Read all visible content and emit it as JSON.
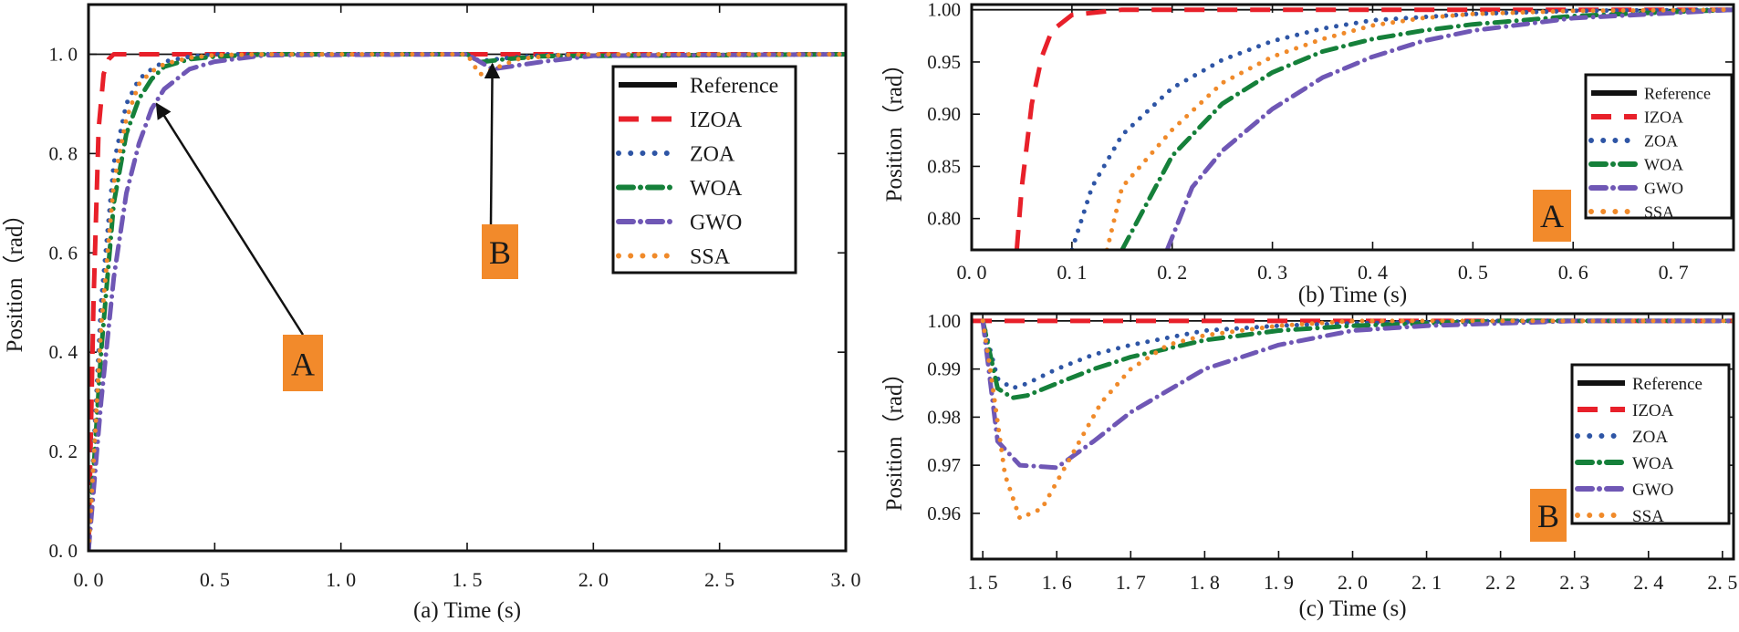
{
  "series_styles": [
    {
      "name": "Reference",
      "color": "#111111",
      "style": "solid"
    },
    {
      "name": "IZOA",
      "color": "#e8202a",
      "style": "dash"
    },
    {
      "name": "ZOA",
      "color": "#2e55a5",
      "style": "dot"
    },
    {
      "name": "WOA",
      "color": "#15803a",
      "style": "dashdot"
    },
    {
      "name": "GWO",
      "color": "#6f57b5",
      "style": "dashdot"
    },
    {
      "name": "SSA",
      "color": "#f08a2a",
      "style": "dot"
    }
  ],
  "chart_data": [
    {
      "type": "line",
      "id": "a",
      "title": "",
      "xlabel": "(a) Time (s)",
      "ylabel": "Position（rad）",
      "xlim": [
        0,
        3
      ],
      "ylim": [
        0,
        1.1
      ],
      "xticks": [
        0,
        0.5,
        1.0,
        1.5,
        2.0,
        2.5,
        3.0
      ],
      "xtick_labels": [
        "0. 0",
        "0. 5",
        "1. 0",
        "1. 5",
        "2. 0",
        "2. 5",
        "3. 0"
      ],
      "yticks": [
        0,
        0.2,
        0.4,
        0.6,
        0.8,
        1.0
      ],
      "ytick_labels": [
        "0. 0",
        "0. 2",
        "0. 4",
        "0. 6",
        "0. 8",
        "1. 0"
      ],
      "legend": [
        "Reference",
        "IZOA",
        "ZOA",
        "WOA",
        "GWO",
        "SSA"
      ],
      "legend_position": "top-right",
      "series": [
        {
          "name": "Reference",
          "x": [
            0,
            3
          ],
          "y": [
            1,
            1
          ]
        },
        {
          "name": "IZOA",
          "x": [
            0,
            0.02,
            0.04,
            0.06,
            0.08,
            0.1,
            0.15,
            0.3,
            1.5,
            1.6,
            3.0
          ],
          "y": [
            0,
            0.5,
            0.85,
            0.96,
            0.99,
            1.0,
            1.0,
            1.0,
            1.0,
            1.0,
            1.0
          ]
        },
        {
          "name": "ZOA",
          "x": [
            0,
            0.05,
            0.1,
            0.15,
            0.2,
            0.25,
            0.3,
            0.4,
            0.5,
            0.7,
            1.5,
            1.55,
            1.65,
            1.8,
            3.0
          ],
          "y": [
            0,
            0.5,
            0.78,
            0.9,
            0.95,
            0.97,
            0.985,
            0.995,
            1.0,
            1.0,
            1.0,
            0.986,
            0.992,
            0.998,
            1.0
          ]
        },
        {
          "name": "WOA",
          "x": [
            0,
            0.05,
            0.1,
            0.15,
            0.2,
            0.25,
            0.3,
            0.4,
            0.5,
            0.7,
            1.5,
            1.55,
            1.65,
            1.8,
            3.0
          ],
          "y": [
            0,
            0.4,
            0.7,
            0.84,
            0.91,
            0.95,
            0.975,
            0.99,
            0.995,
            1.0,
            1.0,
            0.984,
            0.99,
            0.996,
            1.0
          ]
        },
        {
          "name": "GWO",
          "x": [
            0,
            0.05,
            0.1,
            0.15,
            0.2,
            0.25,
            0.3,
            0.4,
            0.5,
            0.7,
            1.5,
            1.6,
            1.8,
            2.0,
            3.0
          ],
          "y": [
            0,
            0.3,
            0.55,
            0.72,
            0.82,
            0.89,
            0.93,
            0.97,
            0.985,
            0.998,
            1.0,
            0.97,
            0.985,
            0.997,
            1.0
          ]
        },
        {
          "name": "SSA",
          "x": [
            0,
            0.05,
            0.1,
            0.15,
            0.2,
            0.25,
            0.3,
            0.4,
            0.5,
            0.7,
            1.5,
            1.55,
            1.7,
            1.85,
            2.0,
            3.0
          ],
          "y": [
            0,
            0.45,
            0.74,
            0.87,
            0.94,
            0.965,
            0.98,
            0.993,
            0.998,
            1.0,
            1.0,
            0.959,
            0.99,
            0.998,
            1.0,
            1.0
          ]
        }
      ],
      "annotations": [
        {
          "label": "A",
          "target_x": 0.27,
          "target_y": 0.9
        },
        {
          "label": "B",
          "target_x": 1.6,
          "target_y": 0.98
        }
      ]
    },
    {
      "type": "line",
      "id": "b",
      "title": "",
      "xlabel": "(b) Time (s)",
      "ylabel": "Position（rad）",
      "xlim": [
        0,
        0.76
      ],
      "ylim": [
        0.77,
        1.005
      ],
      "xticks": [
        0,
        0.1,
        0.2,
        0.3,
        0.4,
        0.5,
        0.6,
        0.7
      ],
      "xtick_labels": [
        "0. 0",
        "0. 1",
        "0. 2",
        "0. 3",
        "0. 4",
        "0. 5",
        "0. 6",
        "0. 7"
      ],
      "yticks": [
        0.8,
        0.85,
        0.9,
        0.95,
        1.0
      ],
      "ytick_labels": [
        "0.80",
        "0.85",
        "0.90",
        "0.95",
        "1.00"
      ],
      "legend": [
        "Reference",
        "IZOA",
        "ZOA",
        "WOA",
        "GWO",
        "SSA"
      ],
      "legend_position": "right",
      "series": [
        {
          "name": "Reference",
          "x": [
            0,
            0.76
          ],
          "y": [
            1,
            1
          ]
        },
        {
          "name": "IZOA",
          "x": [
            0.045,
            0.05,
            0.06,
            0.07,
            0.08,
            0.1,
            0.15,
            0.25,
            0.76
          ],
          "y": [
            0.77,
            0.83,
            0.91,
            0.955,
            0.98,
            0.995,
            1.0,
            1.0,
            1.0
          ]
        },
        {
          "name": "ZOA",
          "x": [
            0.1,
            0.12,
            0.15,
            0.2,
            0.25,
            0.3,
            0.35,
            0.4,
            0.5,
            0.6,
            0.76
          ],
          "y": [
            0.77,
            0.83,
            0.88,
            0.925,
            0.952,
            0.97,
            0.982,
            0.99,
            0.996,
            0.999,
            1.0
          ]
        },
        {
          "name": "WOA",
          "x": [
            0.15,
            0.2,
            0.25,
            0.3,
            0.35,
            0.4,
            0.45,
            0.5,
            0.6,
            0.7,
            0.76
          ],
          "y": [
            0.77,
            0.86,
            0.91,
            0.94,
            0.96,
            0.972,
            0.98,
            0.986,
            0.994,
            0.998,
            1.0
          ]
        },
        {
          "name": "GWO",
          "x": [
            0.195,
            0.22,
            0.25,
            0.3,
            0.35,
            0.4,
            0.45,
            0.5,
            0.6,
            0.7,
            0.76
          ],
          "y": [
            0.77,
            0.83,
            0.865,
            0.905,
            0.935,
            0.955,
            0.97,
            0.98,
            0.992,
            0.997,
            1.0
          ]
        },
        {
          "name": "SSA",
          "x": [
            0.135,
            0.15,
            0.2,
            0.25,
            0.3,
            0.35,
            0.4,
            0.45,
            0.5,
            0.6,
            0.76
          ],
          "y": [
            0.77,
            0.83,
            0.885,
            0.93,
            0.955,
            0.972,
            0.985,
            0.992,
            0.996,
            0.999,
            1.0
          ]
        }
      ],
      "annotations": [
        {
          "label": "A"
        }
      ]
    },
    {
      "type": "line",
      "id": "c",
      "title": "",
      "xlabel": "(c) Time (s)",
      "ylabel": "Position（rad）",
      "xlim": [
        1.485,
        2.515
      ],
      "ylim": [
        0.9505,
        1.0015
      ],
      "xticks": [
        1.5,
        1.6,
        1.7,
        1.8,
        1.9,
        2.0,
        2.1,
        2.2,
        2.3,
        2.4,
        2.5
      ],
      "xtick_labels": [
        "1. 5",
        "1. 6",
        "1. 7",
        "1. 8",
        "1. 9",
        "2. 0",
        "2. 1",
        "2. 2",
        "2. 3",
        "2. 4",
        "2. 5"
      ],
      "yticks": [
        0.96,
        0.97,
        0.98,
        0.99,
        1.0
      ],
      "ytick_labels": [
        "0.96",
        "0.97",
        "0.98",
        "0.99",
        "1.00"
      ],
      "legend": [
        "Reference",
        "IZOA",
        "ZOA",
        "WOA",
        "GWO",
        "SSA"
      ],
      "legend_position": "right",
      "series": [
        {
          "name": "Reference",
          "x": [
            1.485,
            2.515
          ],
          "y": [
            1,
            1
          ]
        },
        {
          "name": "IZOA",
          "x": [
            1.485,
            2.515
          ],
          "y": [
            1.0,
            1.0
          ]
        },
        {
          "name": "ZOA",
          "x": [
            1.5,
            1.52,
            1.54,
            1.56,
            1.6,
            1.65,
            1.7,
            1.8,
            1.9,
            2.0,
            2.2,
            2.515
          ],
          "y": [
            1.0,
            0.988,
            0.986,
            0.987,
            0.99,
            0.993,
            0.995,
            0.998,
            0.999,
            0.9995,
            1.0,
            1.0
          ]
        },
        {
          "name": "WOA",
          "x": [
            1.5,
            1.52,
            1.54,
            1.56,
            1.6,
            1.65,
            1.7,
            1.8,
            1.9,
            2.0,
            2.2,
            2.515
          ],
          "y": [
            1.0,
            0.986,
            0.984,
            0.9845,
            0.987,
            0.99,
            0.9925,
            0.996,
            0.998,
            0.999,
            1.0,
            1.0
          ]
        },
        {
          "name": "GWO",
          "x": [
            1.5,
            1.52,
            1.55,
            1.6,
            1.65,
            1.7,
            1.8,
            1.9,
            2.0,
            2.1,
            2.3,
            2.515
          ],
          "y": [
            1.0,
            0.975,
            0.97,
            0.9695,
            0.975,
            0.981,
            0.99,
            0.995,
            0.998,
            0.999,
            1.0,
            1.0
          ]
        },
        {
          "name": "SSA",
          "x": [
            1.5,
            1.51,
            1.53,
            1.55,
            1.58,
            1.62,
            1.66,
            1.7,
            1.75,
            1.8,
            1.9,
            2.0,
            2.515
          ],
          "y": [
            1.0,
            0.99,
            0.968,
            0.959,
            0.961,
            0.972,
            0.983,
            0.99,
            0.995,
            0.997,
            0.999,
            1.0,
            1.0
          ]
        }
      ],
      "annotations": [
        {
          "label": "B"
        }
      ]
    }
  ]
}
